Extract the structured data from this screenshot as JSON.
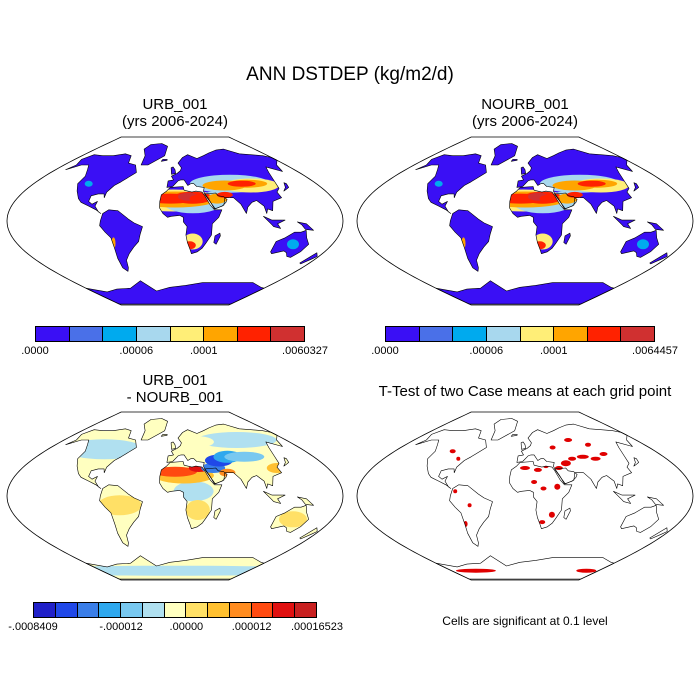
{
  "title": "ANN DSTDEP (kg/m2/d)",
  "panels": {
    "urb": {
      "title": "URB_001",
      "subtitle": "(yrs 2006-2024)",
      "colorbar": {
        "colors": [
          "#3a0ff5",
          "#4a70e8",
          "#00aaee",
          "#a8d8ee",
          "#ffee77",
          "#ffa500",
          "#ff2200",
          "#d03030"
        ],
        "labels": [
          ".0000",
          ".00006",
          ".0001",
          ".0060327"
        ]
      }
    },
    "nourb": {
      "title": "NOURB_001",
      "subtitle": "(yrs 2006-2024)",
      "colorbar": {
        "colors": [
          "#3a0ff5",
          "#4a70e8",
          "#00aaee",
          "#a8d8ee",
          "#ffee77",
          "#ffa500",
          "#ff2200",
          "#d03030"
        ],
        "labels": [
          ".0000",
          ".00006",
          ".0001",
          ".0064457"
        ]
      }
    },
    "diff": {
      "title": "URB_001",
      "subtitle": "- NOURB_001",
      "colorbar": {
        "colors": [
          "#2020c8",
          "#2048e8",
          "#3a7ee8",
          "#2ea8ee",
          "#78c8f0",
          "#b0e0f0",
          "#ffffc0",
          "#ffe066",
          "#ffc030",
          "#ff8c20",
          "#ff4a10",
          "#e01010",
          "#c82020"
        ],
        "labels": [
          "-.0008409",
          "-.000012",
          ".00000",
          ".000012",
          ".00016523"
        ]
      }
    },
    "ttest": {
      "title": "T-Test of two Case means at each grid point",
      "note": "Cells are significant at 0.1 level"
    }
  },
  "colors": {
    "ocean": "#ffffff",
    "coast": "#000000",
    "land_low": "#3a0ff5",
    "dust_orange": "#ffa500",
    "dust_red": "#ff2200",
    "diff_neutral": "#ffffc0",
    "diff_pos": "#ffe066",
    "diff_neg": "#78c8f0",
    "significant": "#e00000"
  }
}
